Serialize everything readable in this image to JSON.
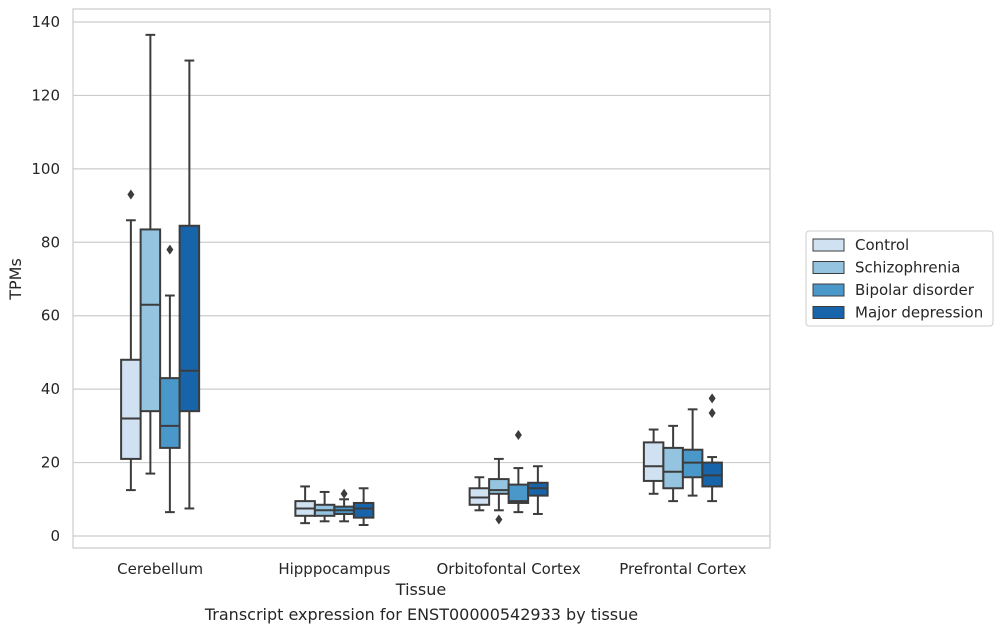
{
  "caption": "Transcript expression for ENST00000542933 by tissue",
  "colors": {
    "Control": "#d0e1f2",
    "Schizophrenia": "#94c4df",
    "Bipolar disorder": "#4a98c9",
    "Major depression": "#1764ab",
    "grid": "#cccccc",
    "line": "#3c3c3c"
  },
  "chart_data": {
    "type": "box",
    "xlabel": "Tissue",
    "ylabel": "TPMs",
    "ylim": [
      -3,
      142
    ],
    "yticks": [
      0,
      20,
      40,
      60,
      80,
      100,
      120,
      140
    ],
    "grid": "horizontal",
    "legend_position": "right",
    "categories": [
      "Cerebellum",
      "Hipppocampus",
      "Orbitofontal Cortex",
      "Prefrontal Cortex"
    ],
    "series": [
      {
        "name": "Control",
        "boxes": [
          {
            "q1": 21,
            "median": 32,
            "q3": 48,
            "whisker_low": 12.5,
            "whisker_high": 86,
            "outliers": [
              93
            ]
          },
          {
            "q1": 5.5,
            "median": 7.5,
            "q3": 9.5,
            "whisker_low": 3.5,
            "whisker_high": 13.5,
            "outliers": []
          },
          {
            "q1": 8.5,
            "median": 10.5,
            "q3": 13,
            "whisker_low": 7,
            "whisker_high": 16,
            "outliers": []
          },
          {
            "q1": 15,
            "median": 19,
            "q3": 25.5,
            "whisker_low": 11.5,
            "whisker_high": 29,
            "outliers": []
          }
        ]
      },
      {
        "name": "Schizophrenia",
        "boxes": [
          {
            "q1": 34,
            "median": 63,
            "q3": 83.5,
            "whisker_low": 17,
            "whisker_high": 136.5,
            "outliers": []
          },
          {
            "q1": 5.5,
            "median": 7,
            "q3": 8.5,
            "whisker_low": 4,
            "whisker_high": 12,
            "outliers": []
          },
          {
            "q1": 11.5,
            "median": 12.5,
            "q3": 15.5,
            "whisker_low": 7,
            "whisker_high": 21,
            "outliers": [
              4.5
            ]
          },
          {
            "q1": 13,
            "median": 17.5,
            "q3": 24,
            "whisker_low": 9.5,
            "whisker_high": 30,
            "outliers": []
          }
        ]
      },
      {
        "name": "Bipolar disorder",
        "boxes": [
          {
            "q1": 24,
            "median": 30,
            "q3": 43,
            "whisker_low": 6.5,
            "whisker_high": 65.5,
            "outliers": [
              78
            ]
          },
          {
            "q1": 6,
            "median": 7,
            "q3": 8,
            "whisker_low": 4,
            "whisker_high": 10,
            "outliers": [
              11.5
            ]
          },
          {
            "q1": 9,
            "median": 9.5,
            "q3": 14,
            "whisker_low": 6.5,
            "whisker_high": 18.5,
            "outliers": [
              27.5
            ]
          },
          {
            "q1": 16,
            "median": 20,
            "q3": 23.5,
            "whisker_low": 11,
            "whisker_high": 34.5,
            "outliers": []
          }
        ]
      },
      {
        "name": "Major depression",
        "boxes": [
          {
            "q1": 34,
            "median": 45,
            "q3": 84.5,
            "whisker_low": 7.5,
            "whisker_high": 129.5,
            "outliers": []
          },
          {
            "q1": 5,
            "median": 7.5,
            "q3": 9,
            "whisker_low": 3,
            "whisker_high": 13,
            "outliers": []
          },
          {
            "q1": 11,
            "median": 13,
            "q3": 14.5,
            "whisker_low": 6,
            "whisker_high": 19,
            "outliers": []
          },
          {
            "q1": 13.5,
            "median": 16.5,
            "q3": 20,
            "whisker_low": 9.5,
            "whisker_high": 21.5,
            "outliers": [
              33.5,
              37.5
            ]
          }
        ]
      }
    ]
  }
}
